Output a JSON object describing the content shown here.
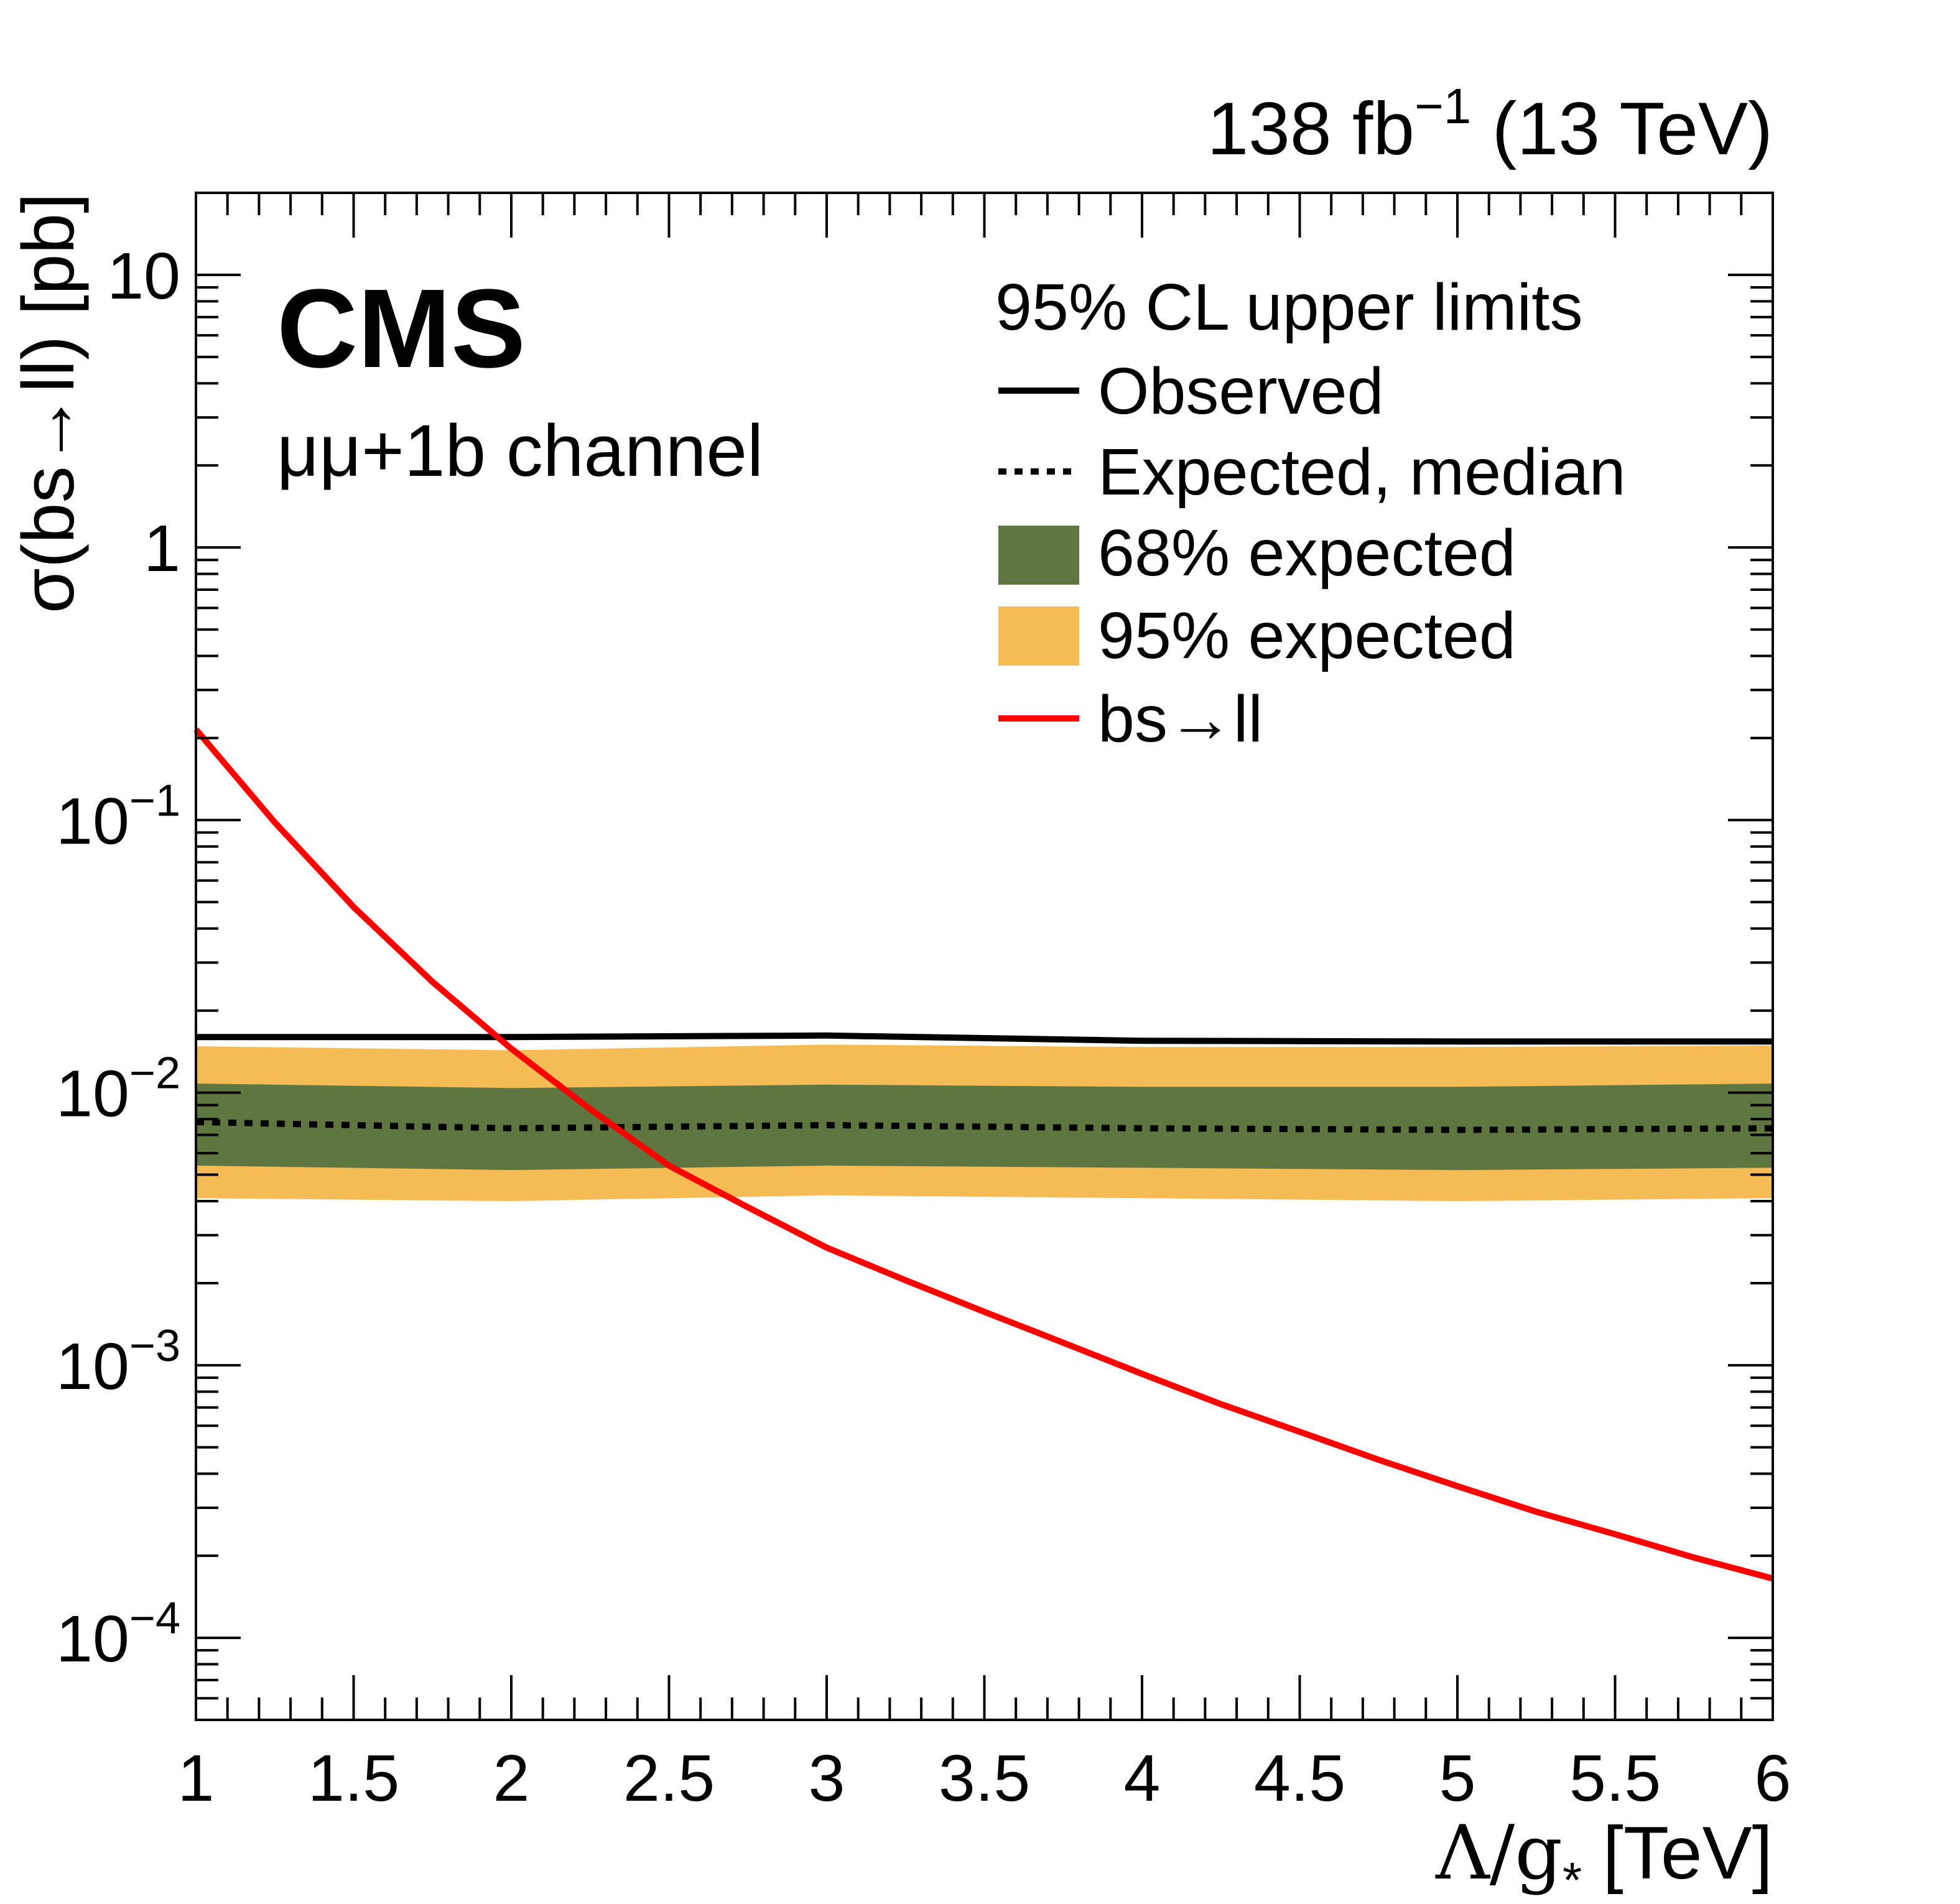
{
  "chart_data": {
    "type": "line",
    "lumi": "138 fb",
    "lumi_sup": "−1",
    "energy": "(13 TeV)",
    "experiment": "CMS",
    "channel": "μμ+1b channel",
    "xlabel": "Λ/g",
    "xlabel_sub": "*",
    "xlabel_unit": "[TeV]",
    "ylabel": "σ(bs→ll) [pb]",
    "xlim": [
      1,
      6
    ],
    "ylog": true,
    "ylim": [
      5e-05,
      20
    ],
    "x_ticks": [
      1,
      1.5,
      2,
      2.5,
      3,
      3.5,
      4,
      4.5,
      5,
      5.5,
      6
    ],
    "x_tick_labels": [
      "1",
      "1.5",
      "2",
      "2.5",
      "3",
      "3.5",
      "4",
      "4.5",
      "5",
      "5.5",
      "6"
    ],
    "y_ticks": [
      {
        "value": 10,
        "base": "10",
        "sup": ""
      },
      {
        "value": 1,
        "base": "1",
        "sup": ""
      },
      {
        "value": 0.1,
        "base": "10",
        "sup": "−1"
      },
      {
        "value": 0.01,
        "base": "10",
        "sup": "−2"
      },
      {
        "value": 0.001,
        "base": "10",
        "sup": "−3"
      },
      {
        "value": 0.0001,
        "base": "10",
        "sup": "−4"
      }
    ],
    "legend_header": "95% CL upper limits",
    "legend_position": "top-right",
    "legend": [
      {
        "label": "Observed",
        "style": "solid",
        "color": "#000000"
      },
      {
        "label": "Expected, median",
        "style": "dotted",
        "color": "#000000"
      },
      {
        "label": "68% expected",
        "style": "fill",
        "color": "#607641"
      },
      {
        "label": "95% expected",
        "style": "fill",
        "color": "#F5BB54"
      },
      {
        "label": "bs→ll",
        "style": "solid",
        "color": "#FF0000"
      }
    ],
    "x": [
      1,
      2,
      3,
      4,
      5,
      6
    ],
    "series": [
      {
        "name": "Observed",
        "values": [
          0.016,
          0.016,
          0.0162,
          0.0155,
          0.0154,
          0.0154
        ]
      },
      {
        "name": "Expected, median",
        "values": [
          0.0078,
          0.0074,
          0.0076,
          0.0074,
          0.0073,
          0.0074
        ]
      },
      {
        "name": "68% expected low",
        "values": [
          0.0054,
          0.0052,
          0.0054,
          0.0053,
          0.0052,
          0.0053
        ]
      },
      {
        "name": "68% expected high",
        "values": [
          0.0108,
          0.0104,
          0.0107,
          0.0105,
          0.0105,
          0.0108
        ]
      },
      {
        "name": "95% expected low",
        "values": [
          0.0041,
          0.004,
          0.0042,
          0.0041,
          0.004,
          0.0041
        ]
      },
      {
        "name": "95% expected high",
        "values": [
          0.0148,
          0.0143,
          0.015,
          0.0147,
          0.0147,
          0.0149
        ]
      },
      {
        "name": "bs→ll",
        "x": [
          1,
          1.25,
          1.5,
          1.75,
          2,
          2.25,
          2.5,
          2.75,
          3,
          3.25,
          3.5,
          3.75,
          4,
          4.25,
          4.5,
          4.75,
          5,
          5.25,
          5.5,
          5.75,
          6
        ],
        "values": [
          0.215,
          0.098,
          0.048,
          0.0255,
          0.0145,
          0.0087,
          0.0054,
          0.0038,
          0.0027,
          0.00205,
          0.00157,
          0.00121,
          0.00093,
          0.00072,
          0.00057,
          0.00045,
          0.00036,
          0.00029,
          0.00024,
          0.000197,
          0.000165
        ]
      }
    ],
    "colors": {
      "observed": "#000000",
      "expected": "#000000",
      "band68": "#607641",
      "band95": "#F5BB54",
      "signal": "#FF0000"
    }
  }
}
